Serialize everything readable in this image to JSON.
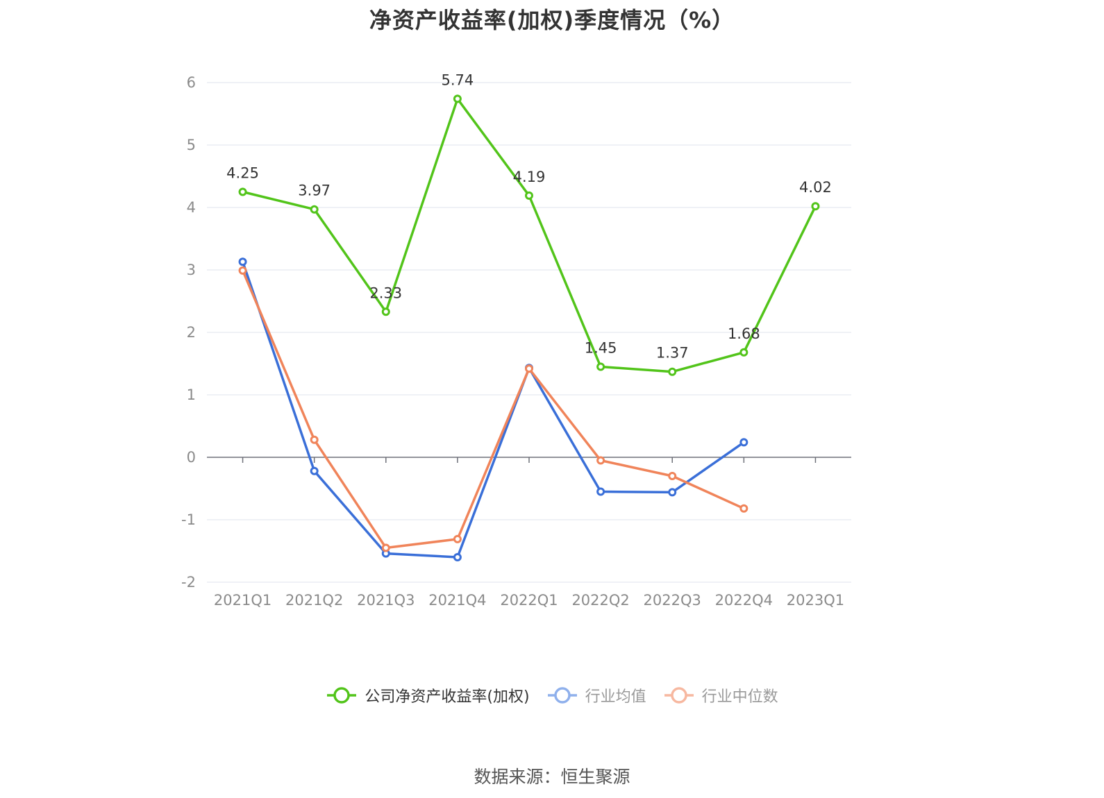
{
  "chart_data": {
    "type": "line",
    "title": "净资产收益率(加权)季度情况（%）",
    "categories": [
      "2021Q1",
      "2021Q2",
      "2021Q3",
      "2021Q4",
      "2022Q1",
      "2022Q2",
      "2022Q3",
      "2022Q4",
      "2023Q1"
    ],
    "ylim": [
      -2,
      6
    ],
    "yticks": [
      -2,
      -1,
      0,
      1,
      2,
      3,
      4,
      5,
      6
    ],
    "grid": true,
    "legend_position": "bottom",
    "series": [
      {
        "name": "公司净资产收益率(加权)",
        "color": "#52c41a",
        "values": [
          4.25,
          3.97,
          2.33,
          5.74,
          4.19,
          1.45,
          1.37,
          1.68,
          4.02
        ],
        "labels": [
          "4.25",
          "3.97",
          "2.33",
          "5.74",
          "4.19",
          "1.45",
          "1.37",
          "1.68",
          "4.02"
        ]
      },
      {
        "name": "行业均值",
        "color": "#3a6fd8",
        "values": [
          3.13,
          -0.22,
          -1.54,
          -1.6,
          1.43,
          -0.55,
          -0.56,
          0.24,
          null
        ]
      },
      {
        "name": "行业中位数",
        "color": "#f0845a",
        "values": [
          2.99,
          0.28,
          -1.45,
          -1.31,
          1.42,
          -0.05,
          -0.3,
          -0.82,
          null
        ]
      }
    ],
    "legend_colors": [
      "#52c41a",
      "#8fb0ec",
      "#f7b8a0"
    ],
    "legend_text_colors": [
      "#333333",
      "#999999",
      "#999999"
    ]
  },
  "source": "数据来源：恒生聚源"
}
